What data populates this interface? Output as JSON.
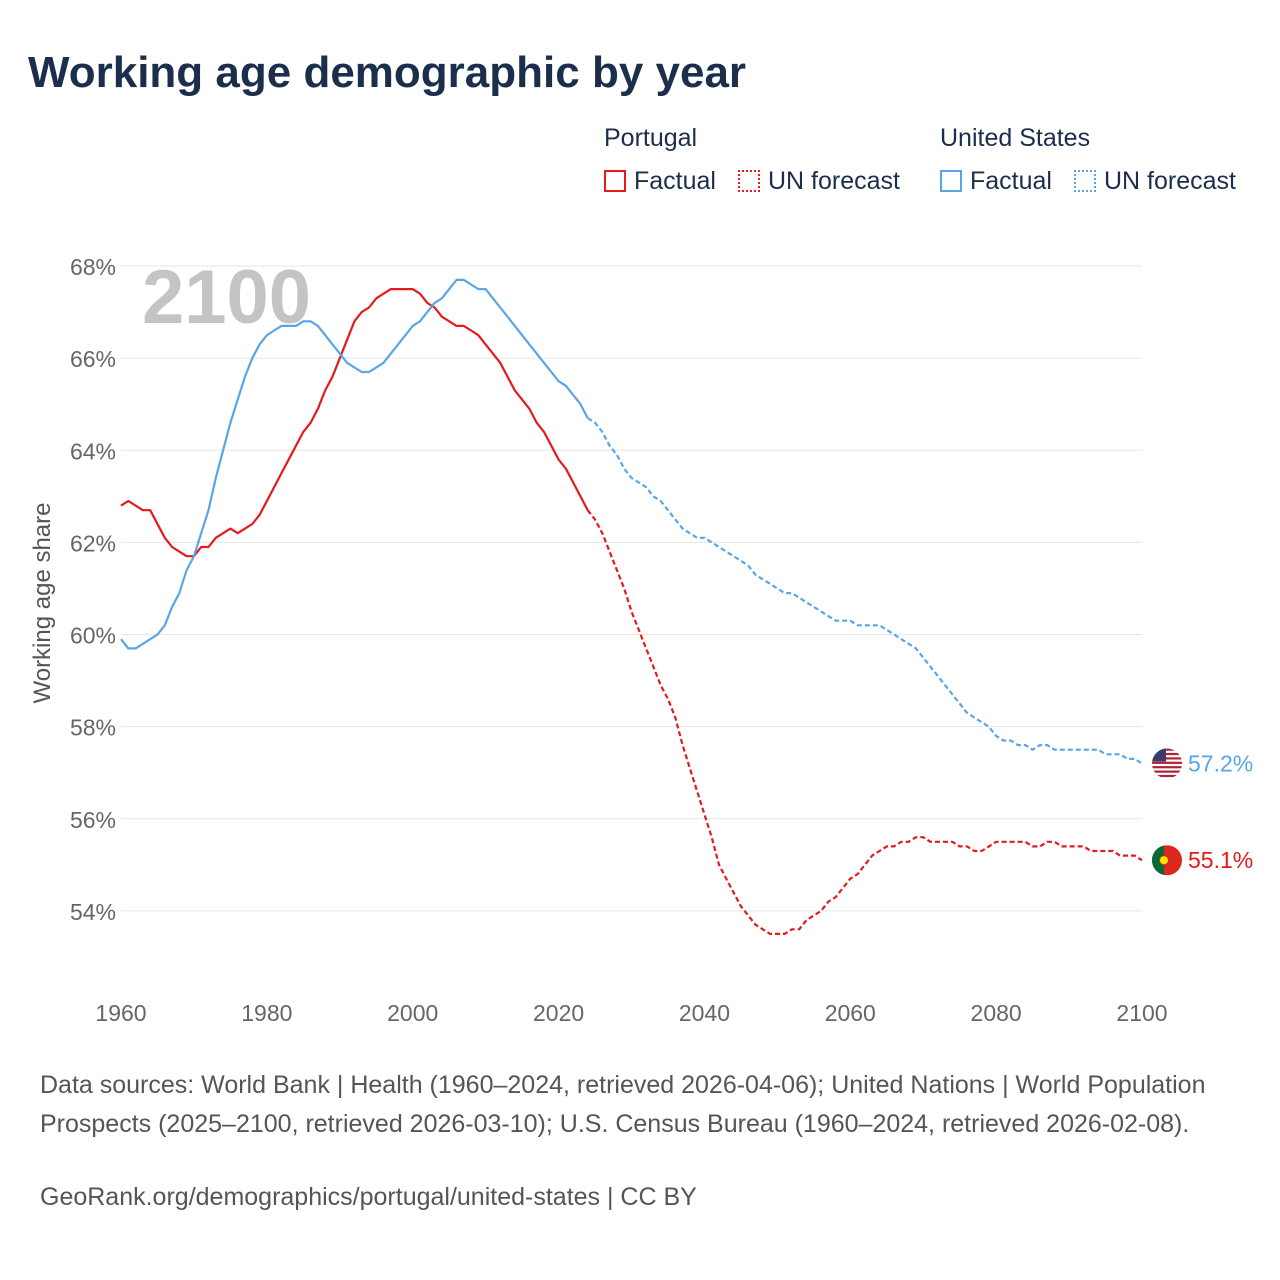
{
  "title": "Working age demographic by year",
  "legend": {
    "groups": [
      {
        "name": "Portugal",
        "factual_label": "Factual",
        "forecast_label": "UN forecast"
      },
      {
        "name": "United States",
        "factual_label": "Factual",
        "forecast_label": "UN forecast"
      }
    ]
  },
  "colors": {
    "portugal": "#e41a1c",
    "united_states": "#5aa5e6",
    "grid": "#e6e6e6",
    "axis_text": "#666666",
    "year_watermark": "#c4c4c4"
  },
  "year_label": "2100",
  "chart_data": {
    "type": "line",
    "ylabel": "Working age share",
    "xlabel": "",
    "xlim": [
      1960,
      2100
    ],
    "ylim": [
      52.5,
      69
    ],
    "x_ticks": [
      1960,
      1980,
      2000,
      2020,
      2040,
      2060,
      2080,
      2100
    ],
    "y_ticks": [
      54,
      56,
      58,
      60,
      62,
      64,
      66,
      68
    ],
    "y_tick_labels": [
      "54%",
      "56%",
      "58%",
      "60%",
      "62%",
      "64%",
      "66%",
      "68%"
    ],
    "series": [
      {
        "name": "Portugal",
        "color_key": "portugal",
        "end_label": "55.1%",
        "flag_icon": "portugal-flag-icon",
        "factual": [
          [
            1960,
            62.8
          ],
          [
            1961,
            62.9
          ],
          [
            1962,
            62.8
          ],
          [
            1963,
            62.7
          ],
          [
            1964,
            62.7
          ],
          [
            1965,
            62.4
          ],
          [
            1966,
            62.1
          ],
          [
            1967,
            61.9
          ],
          [
            1968,
            61.8
          ],
          [
            1969,
            61.7
          ],
          [
            1970,
            61.7
          ],
          [
            1971,
            61.9
          ],
          [
            1972,
            61.9
          ],
          [
            1973,
            62.1
          ],
          [
            1974,
            62.2
          ],
          [
            1975,
            62.3
          ],
          [
            1976,
            62.2
          ],
          [
            1977,
            62.3
          ],
          [
            1978,
            62.4
          ],
          [
            1979,
            62.6
          ],
          [
            1980,
            62.9
          ],
          [
            1981,
            63.2
          ],
          [
            1982,
            63.5
          ],
          [
            1983,
            63.8
          ],
          [
            1984,
            64.1
          ],
          [
            1985,
            64.4
          ],
          [
            1986,
            64.6
          ],
          [
            1987,
            64.9
          ],
          [
            1988,
            65.3
          ],
          [
            1989,
            65.6
          ],
          [
            1990,
            66.0
          ],
          [
            1991,
            66.4
          ],
          [
            1992,
            66.8
          ],
          [
            1993,
            67.0
          ],
          [
            1994,
            67.1
          ],
          [
            1995,
            67.3
          ],
          [
            1996,
            67.4
          ],
          [
            1997,
            67.5
          ],
          [
            1998,
            67.5
          ],
          [
            1999,
            67.5
          ],
          [
            2000,
            67.5
          ],
          [
            2001,
            67.4
          ],
          [
            2002,
            67.2
          ],
          [
            2003,
            67.1
          ],
          [
            2004,
            66.9
          ],
          [
            2005,
            66.8
          ],
          [
            2006,
            66.7
          ],
          [
            2007,
            66.7
          ],
          [
            2008,
            66.6
          ],
          [
            2009,
            66.5
          ],
          [
            2010,
            66.3
          ],
          [
            2011,
            66.1
          ],
          [
            2012,
            65.9
          ],
          [
            2013,
            65.6
          ],
          [
            2014,
            65.3
          ],
          [
            2015,
            65.1
          ],
          [
            2016,
            64.9
          ],
          [
            2017,
            64.6
          ],
          [
            2018,
            64.4
          ],
          [
            2019,
            64.1
          ],
          [
            2020,
            63.8
          ],
          [
            2021,
            63.6
          ],
          [
            2022,
            63.3
          ],
          [
            2023,
            63.0
          ],
          [
            2024,
            62.7
          ]
        ],
        "forecast": [
          [
            2024,
            62.7
          ],
          [
            2025,
            62.5
          ],
          [
            2026,
            62.2
          ],
          [
            2027,
            61.8
          ],
          [
            2028,
            61.4
          ],
          [
            2029,
            61.0
          ],
          [
            2030,
            60.5
          ],
          [
            2031,
            60.1
          ],
          [
            2032,
            59.7
          ],
          [
            2033,
            59.3
          ],
          [
            2034,
            58.9
          ],
          [
            2035,
            58.6
          ],
          [
            2036,
            58.2
          ],
          [
            2037,
            57.6
          ],
          [
            2038,
            57.1
          ],
          [
            2039,
            56.6
          ],
          [
            2040,
            56.1
          ],
          [
            2041,
            55.6
          ],
          [
            2042,
            55.0
          ],
          [
            2043,
            54.7
          ],
          [
            2044,
            54.4
          ],
          [
            2045,
            54.1
          ],
          [
            2046,
            53.9
          ],
          [
            2047,
            53.7
          ],
          [
            2048,
            53.6
          ],
          [
            2049,
            53.5
          ],
          [
            2050,
            53.5
          ],
          [
            2051,
            53.5
          ],
          [
            2052,
            53.6
          ],
          [
            2053,
            53.6
          ],
          [
            2054,
            53.8
          ],
          [
            2055,
            53.9
          ],
          [
            2056,
            54.0
          ],
          [
            2057,
            54.2
          ],
          [
            2058,
            54.3
          ],
          [
            2059,
            54.5
          ],
          [
            2060,
            54.7
          ],
          [
            2061,
            54.8
          ],
          [
            2062,
            55.0
          ],
          [
            2063,
            55.2
          ],
          [
            2064,
            55.3
          ],
          [
            2065,
            55.4
          ],
          [
            2066,
            55.4
          ],
          [
            2067,
            55.5
          ],
          [
            2068,
            55.5
          ],
          [
            2069,
            55.6
          ],
          [
            2070,
            55.6
          ],
          [
            2071,
            55.5
          ],
          [
            2072,
            55.5
          ],
          [
            2073,
            55.5
          ],
          [
            2074,
            55.5
          ],
          [
            2075,
            55.4
          ],
          [
            2076,
            55.4
          ],
          [
            2077,
            55.3
          ],
          [
            2078,
            55.3
          ],
          [
            2079,
            55.4
          ],
          [
            2080,
            55.5
          ],
          [
            2081,
            55.5
          ],
          [
            2082,
            55.5
          ],
          [
            2083,
            55.5
          ],
          [
            2084,
            55.5
          ],
          [
            2085,
            55.4
          ],
          [
            2086,
            55.4
          ],
          [
            2087,
            55.5
          ],
          [
            2088,
            55.5
          ],
          [
            2089,
            55.4
          ],
          [
            2090,
            55.4
          ],
          [
            2091,
            55.4
          ],
          [
            2092,
            55.4
          ],
          [
            2093,
            55.3
          ],
          [
            2094,
            55.3
          ],
          [
            2095,
            55.3
          ],
          [
            2096,
            55.3
          ],
          [
            2097,
            55.2
          ],
          [
            2098,
            55.2
          ],
          [
            2099,
            55.2
          ],
          [
            2100,
            55.1
          ]
        ]
      },
      {
        "name": "United States",
        "color_key": "united_states",
        "end_label": "57.2%",
        "flag_icon": "united-states-flag-icon",
        "factual": [
          [
            1960,
            59.9
          ],
          [
            1961,
            59.7
          ],
          [
            1962,
            59.7
          ],
          [
            1963,
            59.8
          ],
          [
            1964,
            59.9
          ],
          [
            1965,
            60.0
          ],
          [
            1966,
            60.2
          ],
          [
            1967,
            60.6
          ],
          [
            1968,
            60.9
          ],
          [
            1969,
            61.4
          ],
          [
            1970,
            61.7
          ],
          [
            1971,
            62.2
          ],
          [
            1972,
            62.7
          ],
          [
            1973,
            63.4
          ],
          [
            1974,
            64.0
          ],
          [
            1975,
            64.6
          ],
          [
            1976,
            65.1
          ],
          [
            1977,
            65.6
          ],
          [
            1978,
            66.0
          ],
          [
            1979,
            66.3
          ],
          [
            1980,
            66.5
          ],
          [
            1981,
            66.6
          ],
          [
            1982,
            66.7
          ],
          [
            1983,
            66.7
          ],
          [
            1984,
            66.7
          ],
          [
            1985,
            66.8
          ],
          [
            1986,
            66.8
          ],
          [
            1987,
            66.7
          ],
          [
            1988,
            66.5
          ],
          [
            1989,
            66.3
          ],
          [
            1990,
            66.1
          ],
          [
            1991,
            65.9
          ],
          [
            1992,
            65.8
          ],
          [
            1993,
            65.7
          ],
          [
            1994,
            65.7
          ],
          [
            1995,
            65.8
          ],
          [
            1996,
            65.9
          ],
          [
            1997,
            66.1
          ],
          [
            1998,
            66.3
          ],
          [
            1999,
            66.5
          ],
          [
            2000,
            66.7
          ],
          [
            2001,
            66.8
          ],
          [
            2002,
            67.0
          ],
          [
            2003,
            67.2
          ],
          [
            2004,
            67.3
          ],
          [
            2005,
            67.5
          ],
          [
            2006,
            67.7
          ],
          [
            2007,
            67.7
          ],
          [
            2008,
            67.6
          ],
          [
            2009,
            67.5
          ],
          [
            2010,
            67.5
          ],
          [
            2011,
            67.3
          ],
          [
            2012,
            67.1
          ],
          [
            2013,
            66.9
          ],
          [
            2014,
            66.7
          ],
          [
            2015,
            66.5
          ],
          [
            2016,
            66.3
          ],
          [
            2017,
            66.1
          ],
          [
            2018,
            65.9
          ],
          [
            2019,
            65.7
          ],
          [
            2020,
            65.5
          ],
          [
            2021,
            65.4
          ],
          [
            2022,
            65.2
          ],
          [
            2023,
            65.0
          ],
          [
            2024,
            64.7
          ]
        ],
        "forecast": [
          [
            2024,
            64.7
          ],
          [
            2025,
            64.6
          ],
          [
            2026,
            64.4
          ],
          [
            2027,
            64.1
          ],
          [
            2028,
            63.9
          ],
          [
            2029,
            63.6
          ],
          [
            2030,
            63.4
          ],
          [
            2031,
            63.3
          ],
          [
            2032,
            63.2
          ],
          [
            2033,
            63.0
          ],
          [
            2034,
            62.9
          ],
          [
            2035,
            62.7
          ],
          [
            2036,
            62.5
          ],
          [
            2037,
            62.3
          ],
          [
            2038,
            62.2
          ],
          [
            2039,
            62.1
          ],
          [
            2040,
            62.1
          ],
          [
            2041,
            62.0
          ],
          [
            2042,
            61.9
          ],
          [
            2043,
            61.8
          ],
          [
            2044,
            61.7
          ],
          [
            2045,
            61.6
          ],
          [
            2046,
            61.5
          ],
          [
            2047,
            61.3
          ],
          [
            2048,
            61.2
          ],
          [
            2049,
            61.1
          ],
          [
            2050,
            61.0
          ],
          [
            2051,
            60.9
          ],
          [
            2052,
            60.9
          ],
          [
            2053,
            60.8
          ],
          [
            2054,
            60.7
          ],
          [
            2055,
            60.6
          ],
          [
            2056,
            60.5
          ],
          [
            2057,
            60.4
          ],
          [
            2058,
            60.3
          ],
          [
            2059,
            60.3
          ],
          [
            2060,
            60.3
          ],
          [
            2061,
            60.2
          ],
          [
            2062,
            60.2
          ],
          [
            2063,
            60.2
          ],
          [
            2064,
            60.2
          ],
          [
            2065,
            60.1
          ],
          [
            2066,
            60.0
          ],
          [
            2067,
            59.9
          ],
          [
            2068,
            59.8
          ],
          [
            2069,
            59.7
          ],
          [
            2070,
            59.5
          ],
          [
            2071,
            59.3
          ],
          [
            2072,
            59.1
          ],
          [
            2073,
            58.9
          ],
          [
            2074,
            58.7
          ],
          [
            2075,
            58.5
          ],
          [
            2076,
            58.3
          ],
          [
            2077,
            58.2
          ],
          [
            2078,
            58.1
          ],
          [
            2079,
            58.0
          ],
          [
            2080,
            57.8
          ],
          [
            2081,
            57.7
          ],
          [
            2082,
            57.7
          ],
          [
            2083,
            57.6
          ],
          [
            2084,
            57.6
          ],
          [
            2085,
            57.5
          ],
          [
            2086,
            57.6
          ],
          [
            2087,
            57.6
          ],
          [
            2088,
            57.5
          ],
          [
            2089,
            57.5
          ],
          [
            2090,
            57.5
          ],
          [
            2091,
            57.5
          ],
          [
            2092,
            57.5
          ],
          [
            2093,
            57.5
          ],
          [
            2094,
            57.5
          ],
          [
            2095,
            57.4
          ],
          [
            2096,
            57.4
          ],
          [
            2097,
            57.4
          ],
          [
            2098,
            57.3
          ],
          [
            2099,
            57.3
          ],
          [
            2100,
            57.2
          ]
        ]
      }
    ]
  },
  "footer": {
    "sources": "Data sources: World Bank | Health (1960–2024, retrieved 2026-04-06); United Nations | World Population Prospects (2025–2100, retrieved 2026-03-10); U.S. Census Bureau (1960–2024, retrieved 2026-02-08).",
    "link": "GeoRank.org/demographics/portugal/united-states | CC BY"
  }
}
